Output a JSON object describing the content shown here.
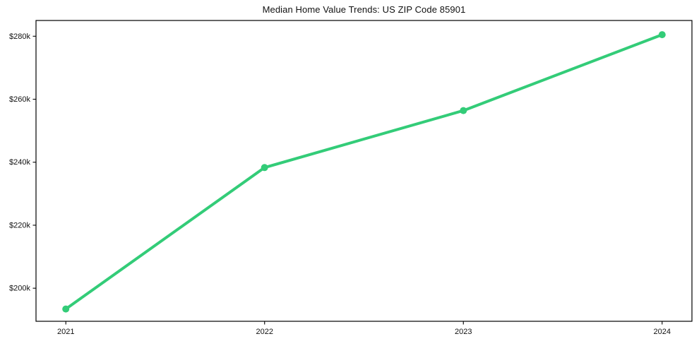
{
  "figure": {
    "title": "Median Home Value Trends: US ZIP Code 85901"
  },
  "chart_data": {
    "type": "line",
    "title": "Median Home Value Trends: US ZIP Code 85901",
    "xlabel": "",
    "ylabel": "",
    "x": [
      2021,
      2022,
      2023,
      2024
    ],
    "xtick_labels": [
      "2021",
      "2022",
      "2023",
      "2024"
    ],
    "series": [
      {
        "name": "Median home value",
        "values": [
          193400,
          238300,
          256400,
          280500
        ]
      }
    ],
    "ytick_values": [
      200000,
      220000,
      240000,
      260000,
      280000
    ],
    "ytick_labels": [
      "$200k",
      "$220k",
      "$240k",
      "$260k",
      "$280k"
    ],
    "xlim": [
      2020.85,
      2024.15
    ],
    "ylim": [
      189500,
      285000
    ],
    "grid": false,
    "legend": false,
    "marker": "circle",
    "line_color": "#33cc78",
    "marker_color": "#33cc78",
    "background_color": "#ffffff",
    "axis_color": "#000000",
    "text_color": "#111111"
  }
}
